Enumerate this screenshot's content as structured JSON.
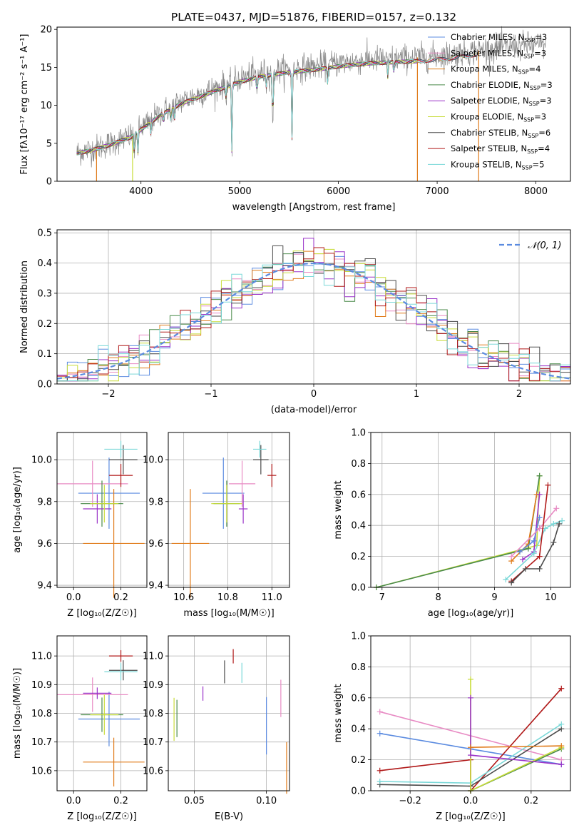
{
  "colors": {
    "Chabrier MILES": "#5b8be0",
    "Salpeter MILES": "#e88bc4",
    "Kroupa MILES": "#e07b1a",
    "Chabrier ELODIE": "#4a8a4a",
    "Salpeter ELODIE": "#9a32c8",
    "Kroupa ELODIE": "#c8dc3a",
    "Chabrier STELIB": "#4a4a4a",
    "Salpeter STELIB": "#b01818",
    "Kroupa STELIB": "#7ad8d8",
    "gauss": "#5b8be0"
  },
  "chart_data": [
    {
      "type": "line",
      "title": "PLATE=0437, MJD=51876, FIBERID=0157, z=0.132",
      "xlabel": "wavelength [Angstrom, rest frame]",
      "ylabel": "Flux [fλ10⁻¹⁷ erg cm⁻² s⁻¹ A⁻¹]",
      "xlim": [
        3150,
        8350
      ],
      "ylim": [
        0,
        20.3
      ],
      "xticks": [
        "4000",
        "5000",
        "6000",
        "7000",
        "8000"
      ],
      "yticks": [
        "0",
        "5",
        "10",
        "15",
        "20"
      ],
      "legend_position": "right",
      "legend": [
        {
          "name": "Chabrier MILES",
          "nssp": "3"
        },
        {
          "name": "Salpeter MILES",
          "nssp": "3"
        },
        {
          "name": "Kroupa MILES",
          "nssp": "4"
        },
        {
          "name": "Chabrier ELODIE",
          "nssp": "3"
        },
        {
          "name": "Salpeter ELODIE",
          "nssp": "3"
        },
        {
          "name": "Kroupa ELODIE",
          "nssp": "3"
        },
        {
          "name": "Chabrier STELIB",
          "nssp": "6"
        },
        {
          "name": "Salpeter STELIB",
          "nssp": "4"
        },
        {
          "name": "Kroupa STELIB",
          "nssp": "5"
        }
      ],
      "continuum": [
        [
          3350,
          3.8
        ],
        [
          3500,
          4.2
        ],
        [
          3700,
          5.0
        ],
        [
          3900,
          6.0
        ],
        [
          4000,
          7.0
        ],
        [
          4200,
          9.0
        ],
        [
          4400,
          10.5
        ],
        [
          4600,
          11.5
        ],
        [
          4800,
          12.5
        ],
        [
          5000,
          13.5
        ],
        [
          5200,
          14.2
        ],
        [
          5500,
          14.8
        ],
        [
          5800,
          15.2
        ],
        [
          6000,
          15.6
        ],
        [
          6300,
          16.0
        ],
        [
          6600,
          16.2
        ],
        [
          6800,
          16.3
        ],
        [
          7000,
          16.5
        ],
        [
          7200,
          16.8
        ],
        [
          7400,
          17.2
        ],
        [
          7600,
          17.5
        ],
        [
          7800,
          17.8
        ],
        [
          8100,
          18.0
        ]
      ],
      "absorption_lines": [
        [
          3934,
          3.5
        ],
        [
          3969,
          3.0
        ],
        [
          4101,
          1.5
        ],
        [
          4227,
          1.2
        ],
        [
          4304,
          2.0
        ],
        [
          4340,
          1.5
        ],
        [
          4861,
          1.5
        ],
        [
          4920,
          9.0
        ],
        [
          5175,
          2.5
        ],
        [
          5270,
          1.5
        ],
        [
          5335,
          8.0
        ],
        [
          5530,
          9.0
        ],
        [
          5890,
          2.0
        ],
        [
          6500,
          2.0
        ],
        [
          6563,
          1.5
        ]
      ],
      "model_drops": [
        [
          3550,
          "Kroupa MILES"
        ],
        [
          3915,
          "Kroupa ELODIE"
        ],
        [
          6800,
          "Kroupa MILES"
        ],
        [
          7420,
          "Kroupa MILES"
        ]
      ]
    },
    {
      "type": "bar",
      "xlabel": "(data-model)/error",
      "ylabel": "Normed distribution",
      "xlim": [
        -2.5,
        2.5
      ],
      "ylim": [
        0,
        0.51
      ],
      "xticks": [
        "−2",
        "−1",
        "0",
        "1",
        "2"
      ],
      "yticks": [
        "0.0",
        "0.1",
        "0.2",
        "0.3",
        "0.4",
        "0.5"
      ],
      "legend_position": "top-right",
      "legend": [
        "𝒩(0, 1)"
      ],
      "bin_width": 0.1,
      "description_curve": "standard normal pdf"
    },
    {
      "type": "scatter",
      "xlabel": "Z [log₁₀(Z/Z☉)]",
      "ylabel": "age  [log₁₀(age/yr)]",
      "xlim": [
        -0.07,
        0.31
      ],
      "ylim": [
        9.39,
        10.13
      ],
      "xticks": [
        "0.0",
        "0.2"
      ],
      "yticks": [
        "9.4",
        "9.6",
        "9.8",
        "10.0"
      ]
    },
    {
      "type": "scatter",
      "xlabel": "mass [log₁₀(M/M☉)]",
      "ylabel": "",
      "xlim": [
        10.53,
        11.08
      ],
      "ylim": [
        9.39,
        10.13
      ],
      "xticks": [
        "10.6",
        "10.8",
        "11.0"
      ],
      "yticks": [
        "9.4",
        "9.6",
        "9.8",
        "10.0"
      ]
    },
    {
      "type": "line",
      "xlabel": "age  [log₁₀(age/yr)]",
      "ylabel": "mass weight",
      "xlim": [
        6.8,
        10.35
      ],
      "ylim": [
        0,
        1
      ],
      "xticks": [
        "7",
        "8",
        "9",
        "10"
      ],
      "yticks": [
        "0.0",
        "0.2",
        "0.4",
        "0.6",
        "0.8",
        "1.0"
      ]
    },
    {
      "type": "scatter",
      "xlabel": "Z [log₁₀(Z/Z☉)]",
      "ylabel": "mass [log₁₀(M/M☉)]",
      "xlim": [
        -0.07,
        0.31
      ],
      "ylim": [
        10.53,
        11.07
      ],
      "xticks": [
        "0.0",
        "0.2"
      ],
      "yticks": [
        "10.6",
        "10.7",
        "10.8",
        "10.9",
        "11.0"
      ]
    },
    {
      "type": "scatter",
      "xlabel": "E(B-V)",
      "ylabel": "",
      "xlim": [
        0.032,
        0.116
      ],
      "ylim": [
        10.53,
        11.07
      ],
      "xticks": [
        "0.05",
        "0.10"
      ],
      "yticks": [
        "10.6",
        "10.7",
        "10.8",
        "10.9",
        "11.0"
      ]
    },
    {
      "type": "line",
      "xlabel": "Z [log₁₀(Z/Z☉)]",
      "ylabel": "mass weight",
      "xlim": [
        -0.33,
        0.33
      ],
      "ylim": [
        0,
        1
      ],
      "xticks": [
        "−0.2",
        "0.0",
        "0.2"
      ],
      "yticks": [
        "0.0",
        "0.2",
        "0.4",
        "0.6",
        "0.8",
        "1.0"
      ]
    }
  ],
  "errbars": {
    "note": "Z, age, mass, ebv with half-widths per model",
    "items": [
      {
        "m": "Chabrier MILES",
        "z": 0.15,
        "dz": 0.13,
        "age": 9.84,
        "dage": 0.17,
        "mass": 10.78,
        "dmass": 0.095,
        "ebv": 0.1,
        "debv_lo": 0.04,
        "debv_hi": 0.06
      },
      {
        "m": "Salpeter MILES",
        "z": 0.08,
        "dz": 0.15,
        "age": 9.885,
        "dage": 0.11,
        "mass": 10.865,
        "dmass": 0.06,
        "ebv": 0.11,
        "debv_lo": 0.03,
        "debv_hi": 0.03
      },
      {
        "m": "Kroupa MILES",
        "z": 0.17,
        "dz": 0.13,
        "age": 9.6,
        "dage": 0.26,
        "mass": 10.63,
        "dmass": 0.085,
        "ebv": 0.114,
        "debv_lo": 0.05,
        "debv_hi": 0.06
      },
      {
        "m": "Chabrier ELODIE",
        "z": 0.12,
        "dz": 0.09,
        "age": 9.79,
        "dage": 0.11,
        "mass": 10.795,
        "dmass": 0.06,
        "ebv": 0.038,
        "debv_lo": 0.045,
        "debv_hi": 0.065
      },
      {
        "m": "Salpeter ELODIE",
        "z": 0.1,
        "dz": 0.06,
        "age": 9.765,
        "dage": 0.07,
        "mass": 10.87,
        "dmass": 0.02,
        "ebv": 0.056,
        "debv_lo": 0.03,
        "debv_hi": 0.05
      },
      {
        "m": "Kroupa ELODIE",
        "z": 0.13,
        "dz": 0.06,
        "age": 9.79,
        "dage": 0.09,
        "mass": 10.795,
        "dmass": 0.07,
        "ebv": 0.036,
        "debv_lo": 0.06,
        "debv_hi": 0.07
      },
      {
        "m": "Chabrier STELIB",
        "z": 0.21,
        "dz": 0.06,
        "age": 10.0,
        "dage": 0.07,
        "mass": 10.95,
        "dmass": 0.035,
        "ebv": 0.071,
        "debv_lo": 0.04,
        "debv_hi": 0.05
      },
      {
        "m": "Salpeter STELIB",
        "z": 0.2,
        "dz": 0.05,
        "age": 9.925,
        "dage": 0.055,
        "mass": 11.0,
        "dmass": 0.02,
        "ebv": 0.077,
        "debv_lo": 0.035,
        "debv_hi": 0.035
      },
      {
        "m": "Kroupa STELIB",
        "z": 0.2,
        "dz": 0.07,
        "age": 10.05,
        "dage": 0.04,
        "mass": 10.945,
        "dmass": 0.03,
        "ebv": 0.083,
        "debv_lo": 0.035,
        "debv_hi": 0.045
      }
    ]
  },
  "mass_weight_tracks": {
    "age": [
      {
        "m": "Kroupa ELODIE",
        "pts": [
          [
            6.9,
            0.0
          ],
          [
            9.75,
            0.27
          ],
          [
            9.8,
            0.72
          ]
        ]
      },
      {
        "m": "Chabrier ELODIE",
        "pts": [
          [
            6.9,
            0.0
          ],
          [
            9.6,
            0.25
          ],
          [
            9.8,
            0.72
          ]
        ]
      },
      {
        "m": "Kroupa MILES",
        "pts": [
          [
            9.3,
            0.17
          ],
          [
            9.6,
            0.28
          ],
          [
            9.75,
            0.6
          ]
        ]
      },
      {
        "m": "Salpeter ELODIE",
        "pts": [
          [
            9.5,
            0.18
          ],
          [
            9.7,
            0.23
          ],
          [
            9.8,
            0.6
          ]
        ]
      },
      {
        "m": "Chabrier MILES",
        "pts": [
          [
            9.45,
            0.23
          ],
          [
            9.7,
            0.3
          ],
          [
            9.8,
            0.45
          ]
        ]
      },
      {
        "m": "Salpeter MILES",
        "pts": [
          [
            9.3,
            0.2
          ],
          [
            9.8,
            0.38
          ],
          [
            10.1,
            0.51
          ]
        ]
      },
      {
        "m": "Kroupa STELIB",
        "pts": [
          [
            9.2,
            0.05
          ],
          [
            9.7,
            0.22
          ],
          [
            9.9,
            0.38
          ],
          [
            10.05,
            0.41
          ],
          [
            10.2,
            0.43
          ]
        ]
      },
      {
        "m": "Salpeter STELIB",
        "pts": [
          [
            9.3,
            0.04
          ],
          [
            9.8,
            0.2
          ],
          [
            9.95,
            0.66
          ]
        ]
      },
      {
        "m": "Chabrier STELIB",
        "pts": [
          [
            9.3,
            0.03
          ],
          [
            9.55,
            0.12
          ],
          [
            9.8,
            0.12
          ],
          [
            10.05,
            0.29
          ],
          [
            10.15,
            0.41
          ]
        ]
      }
    ],
    "z": [
      {
        "m": "Salpeter MILES",
        "pts": [
          [
            -0.3,
            0.51
          ],
          [
            0.3,
            0.2
          ]
        ]
      },
      {
        "m": "Chabrier MILES",
        "pts": [
          [
            -0.3,
            0.37
          ],
          [
            0.0,
            0.27
          ],
          [
            0.3,
            0.17
          ]
        ]
      },
      {
        "m": "Salpeter STELIB",
        "pts": [
          [
            -0.3,
            0.13
          ],
          [
            0.0,
            0.2
          ],
          [
            0.0,
            0.0
          ],
          [
            0.3,
            0.66
          ]
        ]
      },
      {
        "m": "Chabrier STELIB",
        "pts": [
          [
            -0.3,
            0.04
          ],
          [
            0.0,
            0.03
          ],
          [
            0.3,
            0.4
          ]
        ]
      },
      {
        "m": "Kroupa STELIB",
        "pts": [
          [
            -0.3,
            0.06
          ],
          [
            0.0,
            0.05
          ],
          [
            0.3,
            0.43
          ]
        ]
      },
      {
        "m": "Chabrier ELODIE",
        "pts": [
          [
            0.0,
            0.0
          ],
          [
            0.3,
            0.27
          ]
        ]
      },
      {
        "m": "Kroupa ELODIE",
        "pts": [
          [
            0.0,
            0.72
          ],
          [
            0.0,
            0.0
          ],
          [
            0.3,
            0.28
          ]
        ]
      },
      {
        "m": "Salpeter ELODIE",
        "pts": [
          [
            0.0,
            0.6
          ],
          [
            0.0,
            0.23
          ],
          [
            0.3,
            0.17
          ]
        ]
      },
      {
        "m": "Kroupa MILES",
        "pts": [
          [
            0.0,
            0.28
          ],
          [
            0.3,
            0.29
          ]
        ]
      }
    ]
  }
}
